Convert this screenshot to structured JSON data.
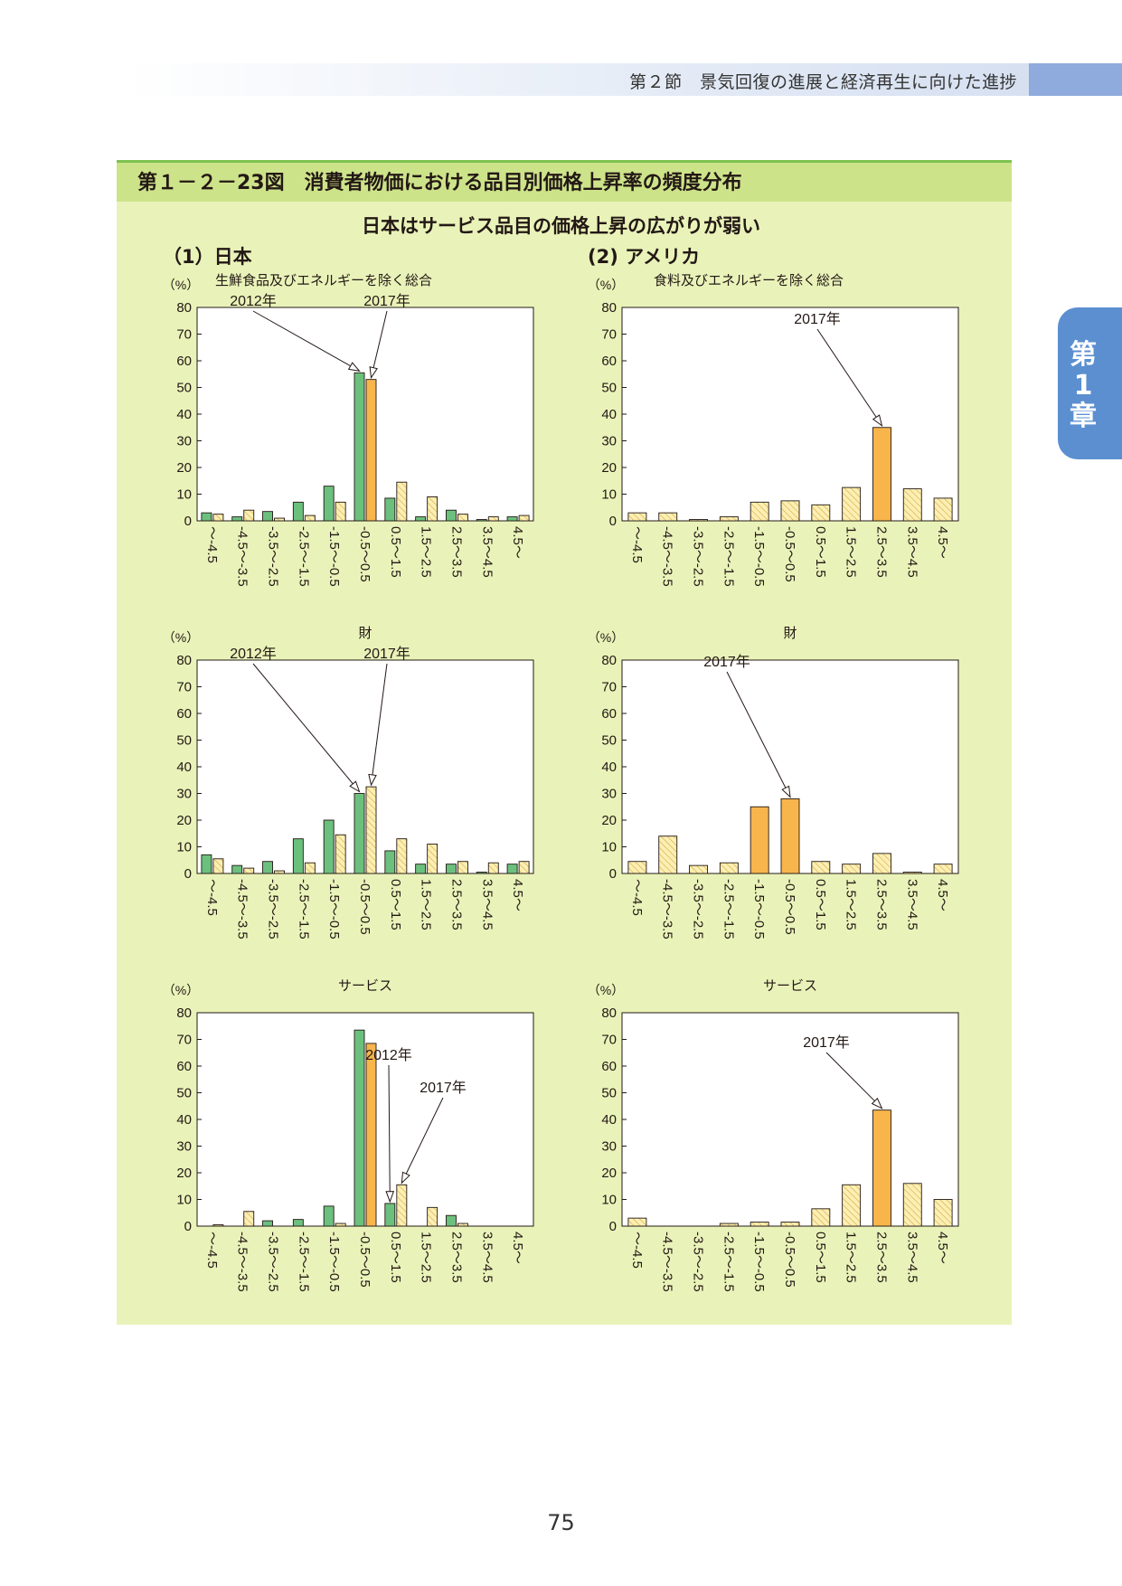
{
  "header": {
    "section_label": "第２節　景気回復の進展と経済再生に向けた進捗"
  },
  "chapter_tab": {
    "line1": "第",
    "line2": "1",
    "line3": "章"
  },
  "figure": {
    "title": "第１－２－23図　消費者物価における品目別価格上昇率の頻度分布",
    "subtitle": "日本はサービス品目の価格上昇の広がりが弱い",
    "section_japan": "（1）日本",
    "section_usa": "(2) アメリカ"
  },
  "page_number": "75",
  "colors": {
    "green": "#6cc07d",
    "orange": "#f7b54b",
    "hatch": "#fbefb4",
    "hatch_line": "#d9a93a",
    "title_bar": "#cde38a",
    "figure_bg": "#e9f3b9"
  },
  "chart_data": [
    {
      "id": "jp_total",
      "type": "bar",
      "title": "生鮮食品及びエネルギーを除く総合",
      "unit_label": "（%）",
      "ylim": [
        0,
        80
      ],
      "yticks": [
        0,
        10,
        20,
        30,
        40,
        50,
        60,
        70,
        80
      ],
      "categories": [
        "～-4.5",
        "-4.5～-3.5",
        "-3.5～-2.5",
        "-2.5～-1.5",
        "-1.5～-0.5",
        "-0.5～0.5",
        "0.5～1.5",
        "1.5～2.5",
        "2.5～3.5",
        "3.5～4.5",
        "4.5～"
      ],
      "series": [
        {
          "name": "2012年",
          "values": [
            3.0,
            1.5,
            3.5,
            7.0,
            13.0,
            55.5,
            8.5,
            1.5,
            4.0,
            0.5,
            1.5
          ],
          "highlight_index": 5
        },
        {
          "name": "2017年",
          "values": [
            2.5,
            4.0,
            1.0,
            2.0,
            7.0,
            53.0,
            14.5,
            9.0,
            2.5,
            1.5,
            2.0
          ],
          "highlight_index": 5
        }
      ],
      "annotations": [
        {
          "text": "2012年",
          "series": 0,
          "index": 5
        },
        {
          "text": "2017年",
          "series": 1,
          "index": 5
        }
      ]
    },
    {
      "id": "us_total",
      "type": "bar",
      "title": "食料及びエネルギーを除く総合",
      "unit_label": "（%）",
      "ylim": [
        0,
        80
      ],
      "yticks": [
        0,
        10,
        20,
        30,
        40,
        50,
        60,
        70,
        80
      ],
      "categories": [
        "～-4.5",
        "-4.5～-3.5",
        "-3.5～-2.5",
        "-2.5～-1.5",
        "-1.5～-0.5",
        "-0.5～0.5",
        "0.5～1.5",
        "1.5～2.5",
        "2.5～3.5",
        "3.5～4.5",
        "4.5～"
      ],
      "series": [
        {
          "name": "2017年",
          "values": [
            3.0,
            3.0,
            0.5,
            1.5,
            7.0,
            7.5,
            6.0,
            12.5,
            35.0,
            12.0,
            8.5
          ],
          "highlight_index": 8
        }
      ],
      "annotations": [
        {
          "text": "2017年",
          "series": 0,
          "index": 8
        }
      ]
    },
    {
      "id": "jp_goods",
      "type": "bar",
      "title": "財",
      "unit_label": "（%）",
      "ylim": [
        0,
        80
      ],
      "yticks": [
        0,
        10,
        20,
        30,
        40,
        50,
        60,
        70,
        80
      ],
      "categories": [
        "～-4.5",
        "-4.5～-3.5",
        "-3.5～-2.5",
        "-2.5～-1.5",
        "-1.5～-0.5",
        "-0.5～0.5",
        "0.5～1.5",
        "1.5～2.5",
        "2.5～3.5",
        "3.5～4.5",
        "4.5～"
      ],
      "series": [
        {
          "name": "2012年",
          "values": [
            7.0,
            3.0,
            4.5,
            13.0,
            20.0,
            30.0,
            8.5,
            3.5,
            3.5,
            0.5,
            3.5
          ],
          "highlight_index": 5
        },
        {
          "name": "2017年",
          "values": [
            5.5,
            2.0,
            1.0,
            4.0,
            14.5,
            32.5,
            13.0,
            11.0,
            4.5,
            4.0,
            4.5
          ],
          "highlight_index": -1
        }
      ],
      "annotations": [
        {
          "text": "2012年",
          "series": 0,
          "index": 5
        },
        {
          "text": "2017年",
          "series": 1,
          "index": 5
        }
      ]
    },
    {
      "id": "us_goods",
      "type": "bar",
      "title": "財",
      "unit_label": "（%）",
      "ylim": [
        0,
        80
      ],
      "yticks": [
        0,
        10,
        20,
        30,
        40,
        50,
        60,
        70,
        80
      ],
      "categories": [
        "～-4.5",
        "-4.5～-3.5",
        "-3.5～-2.5",
        "-2.5～-1.5",
        "-1.5～-0.5",
        "-0.5～0.5",
        "0.5～1.5",
        "1.5～2.5",
        "2.5～3.5",
        "3.5～4.5",
        "4.5～"
      ],
      "series": [
        {
          "name": "2017年",
          "values": [
            4.5,
            14.0,
            3.0,
            4.0,
            25.0,
            28.0,
            4.5,
            3.5,
            7.5,
            0.5,
            3.5
          ],
          "highlight_index": 5,
          "highlight_indices": [
            4,
            5
          ]
        }
      ],
      "annotations": [
        {
          "text": "2017年",
          "series": 0,
          "index": 5
        }
      ]
    },
    {
      "id": "jp_services",
      "type": "bar",
      "title": "サービス",
      "unit_label": "（%）",
      "ylim": [
        0,
        80
      ],
      "yticks": [
        0,
        10,
        20,
        30,
        40,
        50,
        60,
        70,
        80
      ],
      "categories": [
        "～-4.5",
        "-4.5～-3.5",
        "-3.5～-2.5",
        "-2.5～-1.5",
        "-1.5～-0.5",
        "-0.5～0.5",
        "0.5～1.5",
        "1.5～2.5",
        "2.5～3.5",
        "3.5～4.5",
        "4.5～"
      ],
      "series": [
        {
          "name": "2012年",
          "values": [
            0,
            0,
            2.0,
            2.5,
            7.5,
            73.5,
            8.5,
            0,
            4.0,
            0,
            0
          ],
          "highlight_index": 6
        },
        {
          "name": "2017年",
          "values": [
            0.5,
            5.5,
            0,
            0,
            1.0,
            68.5,
            15.5,
            7.0,
            1.0,
            0,
            0
          ],
          "highlight_index": 5
        }
      ],
      "annotations": [
        {
          "text": "2012年",
          "series": 0,
          "index": 6
        },
        {
          "text": "2017年",
          "series": 1,
          "index": 6
        }
      ]
    },
    {
      "id": "us_services",
      "type": "bar",
      "title": "サービス",
      "unit_label": "（%）",
      "ylim": [
        0,
        80
      ],
      "yticks": [
        0,
        10,
        20,
        30,
        40,
        50,
        60,
        70,
        80
      ],
      "categories": [
        "～-4.5",
        "-4.5～-3.5",
        "-3.5～-2.5",
        "-2.5～-1.5",
        "-1.5～-0.5",
        "-0.5～0.5",
        "0.5～1.5",
        "1.5～2.5",
        "2.5～3.5",
        "3.5～4.5",
        "4.5～"
      ],
      "series": [
        {
          "name": "2017年",
          "values": [
            3.0,
            0,
            0,
            1.0,
            1.5,
            1.5,
            6.5,
            15.5,
            43.5,
            16.0,
            10.0
          ],
          "highlight_index": 8
        }
      ],
      "annotations": [
        {
          "text": "2017年",
          "series": 0,
          "index": 8
        }
      ]
    }
  ]
}
